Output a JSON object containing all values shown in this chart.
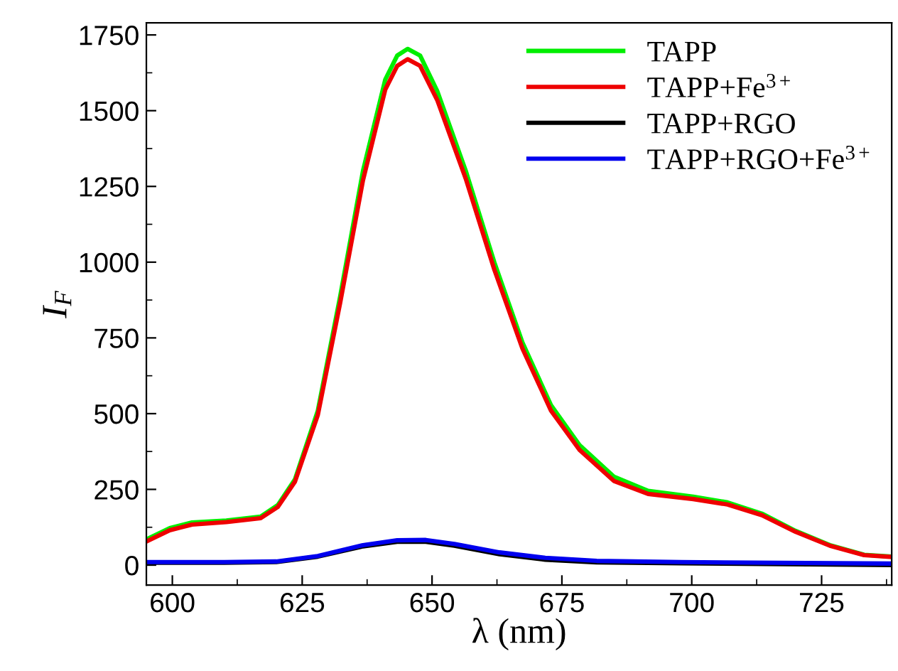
{
  "chart_data": {
    "type": "line",
    "xlabel": "λ (nm)",
    "ylabel": "I$_{F}$",
    "xlim": [
      595,
      738.5
    ],
    "xticks": [
      600,
      625,
      650,
      675,
      700,
      725
    ],
    "ylim": [
      -66,
      1790
    ],
    "yticks": [
      0,
      250,
      500,
      750,
      1000,
      1250,
      1500,
      1750
    ],
    "grid": false,
    "legend": "top right",
    "marker": "none",
    "line_style": "solid",
    "series": [
      {
        "name": "TAPP",
        "color": "#00ee00",
        "x": [
          595,
          599.5,
          603.8,
          610.4,
          617,
          620.3,
          623.6,
          628,
          632.3,
          636.7,
          641,
          643.3,
          645.3,
          647.7,
          651,
          656.5,
          662,
          667.4,
          672.9,
          678.4,
          685,
          691.6,
          700.3,
          706.9,
          713.5,
          720,
          726.6,
          733.2,
          738.5
        ],
        "values": [
          85,
          122,
          141,
          147,
          160,
          198,
          283,
          509,
          886,
          1301,
          1603,
          1682,
          1704,
          1682,
          1565,
          1301,
          999,
          735,
          528,
          396,
          292,
          245,
          226,
          207,
          170,
          113,
          66,
          34,
          28
        ]
      },
      {
        "name": "TAPP+Fe$^{3+}$",
        "color": "#ee0000",
        "x": [
          595,
          599.5,
          603.8,
          610.4,
          617,
          620.3,
          623.6,
          628,
          632.3,
          636.7,
          641,
          643.3,
          645.3,
          647.7,
          651,
          656.5,
          662,
          667.4,
          672.9,
          678.4,
          685,
          691.6,
          700.3,
          706.9,
          713.5,
          720,
          726.6,
          733.2,
          738.5
        ],
        "values": [
          78,
          115,
          134,
          142,
          155,
          192,
          275,
          495,
          865,
          1270,
          1570,
          1648,
          1670,
          1648,
          1535,
          1275,
          975,
          715,
          510,
          380,
          278,
          235,
          218,
          200,
          165,
          110,
          64,
          33,
          27
        ]
      },
      {
        "name": "TAPP+RGO",
        "color": "#000000",
        "x": [
          595,
          610,
          620,
          628,
          636.7,
          643.3,
          648.8,
          654.3,
          663,
          671.8,
          681.7,
          698,
          738.5
        ],
        "values": [
          8,
          8,
          10,
          28,
          62,
          77,
          77,
          64,
          36,
          18,
          9,
          6,
          0
        ]
      },
      {
        "name": "TAPP+RGO+Fe$^{3+}$",
        "color": "#0000ee",
        "x": [
          595,
          610,
          620,
          628,
          636.7,
          643.3,
          648.8,
          654.3,
          663,
          671.8,
          681.7,
          698,
          738.5
        ],
        "values": [
          10,
          10,
          12,
          30,
          66,
          82,
          83,
          70,
          42,
          24,
          14,
          10,
          5
        ]
      }
    ]
  }
}
